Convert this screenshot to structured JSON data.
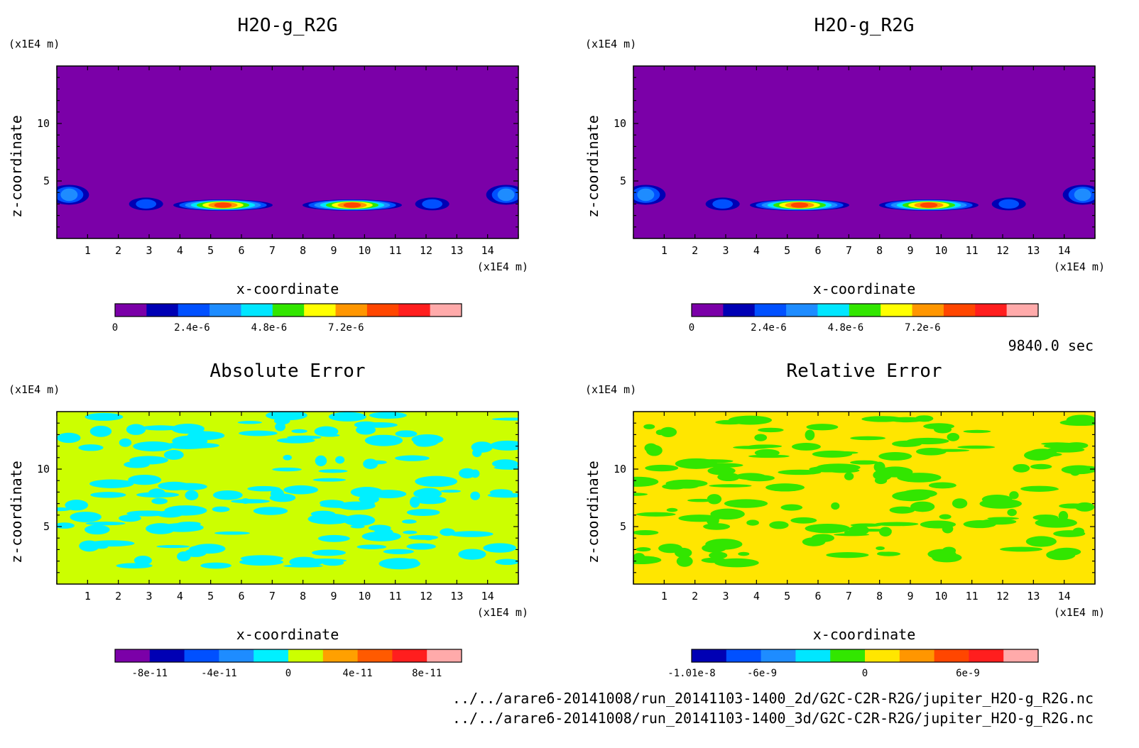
{
  "time_label": "9840.0 sec",
  "file_paths": [
    "../../arare6-20141008/run_20141103-1400_2d/G2C-C2R-R2G/jupiter_H2O-g_R2G.nc",
    "../../arare6-20141008/run_20141103-1400_3d/G2C-C2R-R2G/jupiter_H2O-g_R2G.nc"
  ],
  "colors": {
    "blobs_levels": [
      "#7b00a8",
      "#0000b4",
      "#0050ff",
      "#1e8cff",
      "#00e6ff",
      "#32e600",
      "#ffff00",
      "#ff9600",
      "#ff4600",
      "#ff1e1e",
      "#ffaaaa"
    ],
    "abs_levels": [
      "#7b00a8",
      "#0000b4",
      "#0050ff",
      "#1e8cff",
      "#00f0ff",
      "#ccff00",
      "#ffa000",
      "#ff5a00",
      "#ff1e1e",
      "#ffaaaa"
    ],
    "rel_levels": [
      "#0000b4",
      "#0050ff",
      "#1e8cff",
      "#00e6ff",
      "#32e600",
      "#ffe600",
      "#ff9600",
      "#ff4600",
      "#ff1e1e",
      "#ffaaaa"
    ]
  },
  "chart_data": [
    {
      "type": "heatmap",
      "title": "H2O-g_R2G",
      "xlabel": "x-coordinate",
      "ylabel": "z-coordinate",
      "x_unit": "(x1E4 m)",
      "y_unit": "(x1E4 m)",
      "xlim": [
        0,
        15
      ],
      "ylim": [
        0,
        15
      ],
      "x_ticks": [
        1,
        2,
        3,
        4,
        5,
        6,
        7,
        8,
        9,
        10,
        11,
        12,
        13,
        14
      ],
      "y_ticks": [
        5,
        10
      ],
      "colorbar": {
        "min": 0,
        "max": 1.08e-05,
        "labels": [
          {
            "value": 0,
            "text": "0"
          },
          {
            "value": 2.4e-06,
            "text": "2.4e-6"
          },
          {
            "value": 4.8e-06,
            "text": "4.8e-6"
          },
          {
            "value": 7.2e-06,
            "text": "7.2e-6"
          }
        ]
      },
      "background_value": 0,
      "features": [
        {
          "x": 0.4,
          "z": 3.8,
          "peak": 3.5e-06
        },
        {
          "x": 2.9,
          "z": 3.0,
          "peak": 2.5e-06
        },
        {
          "x": 5.4,
          "z": 2.9,
          "peak": 8.5e-06
        },
        {
          "x": 9.6,
          "z": 2.9,
          "peak": 8.5e-06
        },
        {
          "x": 12.2,
          "z": 3.0,
          "peak": 2.5e-06
        },
        {
          "x": 14.6,
          "z": 3.8,
          "peak": 3.5e-06
        }
      ]
    },
    {
      "type": "heatmap",
      "title": "H2O-g_R2G",
      "xlabel": "x-coordinate",
      "ylabel": "z-coordinate",
      "x_unit": "(x1E4 m)",
      "y_unit": "(x1E4 m)",
      "xlim": [
        0,
        15
      ],
      "ylim": [
        0,
        15
      ],
      "x_ticks": [
        1,
        2,
        3,
        4,
        5,
        6,
        7,
        8,
        9,
        10,
        11,
        12,
        13,
        14
      ],
      "y_ticks": [
        5,
        10
      ],
      "colorbar": {
        "min": 0,
        "max": 1.08e-05,
        "labels": [
          {
            "value": 0,
            "text": "0"
          },
          {
            "value": 2.4e-06,
            "text": "2.4e-6"
          },
          {
            "value": 4.8e-06,
            "text": "4.8e-6"
          },
          {
            "value": 7.2e-06,
            "text": "7.2e-6"
          }
        ]
      },
      "background_value": 0,
      "features": [
        {
          "x": 0.4,
          "z": 3.8,
          "peak": 3.5e-06
        },
        {
          "x": 2.9,
          "z": 3.0,
          "peak": 2.5e-06
        },
        {
          "x": 5.4,
          "z": 2.9,
          "peak": 8.5e-06
        },
        {
          "x": 9.6,
          "z": 2.9,
          "peak": 8.5e-06
        },
        {
          "x": 12.2,
          "z": 3.0,
          "peak": 2.5e-06
        },
        {
          "x": 14.6,
          "z": 3.8,
          "peak": 3.5e-06
        }
      ]
    },
    {
      "type": "heatmap",
      "title": "Absolute Error",
      "xlabel": "x-coordinate",
      "ylabel": "z-coordinate",
      "x_unit": "(x1E4 m)",
      "y_unit": "(x1E4 m)",
      "xlim": [
        0,
        15
      ],
      "ylim": [
        0,
        15
      ],
      "x_ticks": [
        1,
        2,
        3,
        4,
        5,
        6,
        7,
        8,
        9,
        10,
        11,
        12,
        13,
        14
      ],
      "y_ticks": [
        5,
        10
      ],
      "colorbar": {
        "min": -1e-10,
        "max": 1e-10,
        "labels": [
          {
            "value": -8e-11,
            "text": "-8e-11"
          },
          {
            "value": -4e-11,
            "text": "-4e-11"
          },
          {
            "value": 0,
            "text": "0"
          },
          {
            "value": 4e-11,
            "text": "4e-11"
          },
          {
            "value": 8e-11,
            "text": "8e-11"
          }
        ]
      },
      "background_value": 1e-11,
      "patch_value": -1e-11,
      "patch_region_z": [
        1.5,
        14.8
      ]
    },
    {
      "type": "heatmap",
      "title": "Relative Error",
      "xlabel": "x-coordinate",
      "ylabel": "z-coordinate",
      "x_unit": "(x1E4 m)",
      "y_unit": "(x1E4 m)",
      "xlim": [
        0,
        15
      ],
      "ylim": [
        0,
        15
      ],
      "x_ticks": [
        1,
        2,
        3,
        4,
        5,
        6,
        7,
        8,
        9,
        10,
        11,
        12,
        13,
        14
      ],
      "y_ticks": [
        5,
        10
      ],
      "colorbar": {
        "min": -1.01e-08,
        "max": 1.01e-08,
        "labels": [
          {
            "value": -1.01e-08,
            "text": "-1.01e-8"
          },
          {
            "value": -6e-09,
            "text": "-6e-9"
          },
          {
            "value": 0,
            "text": "0"
          },
          {
            "value": 6e-09,
            "text": "6e-9"
          }
        ]
      },
      "background_value": 1e-09,
      "patch_value": -1e-09,
      "patch_region_z": [
        1.5,
        14.8
      ]
    }
  ]
}
